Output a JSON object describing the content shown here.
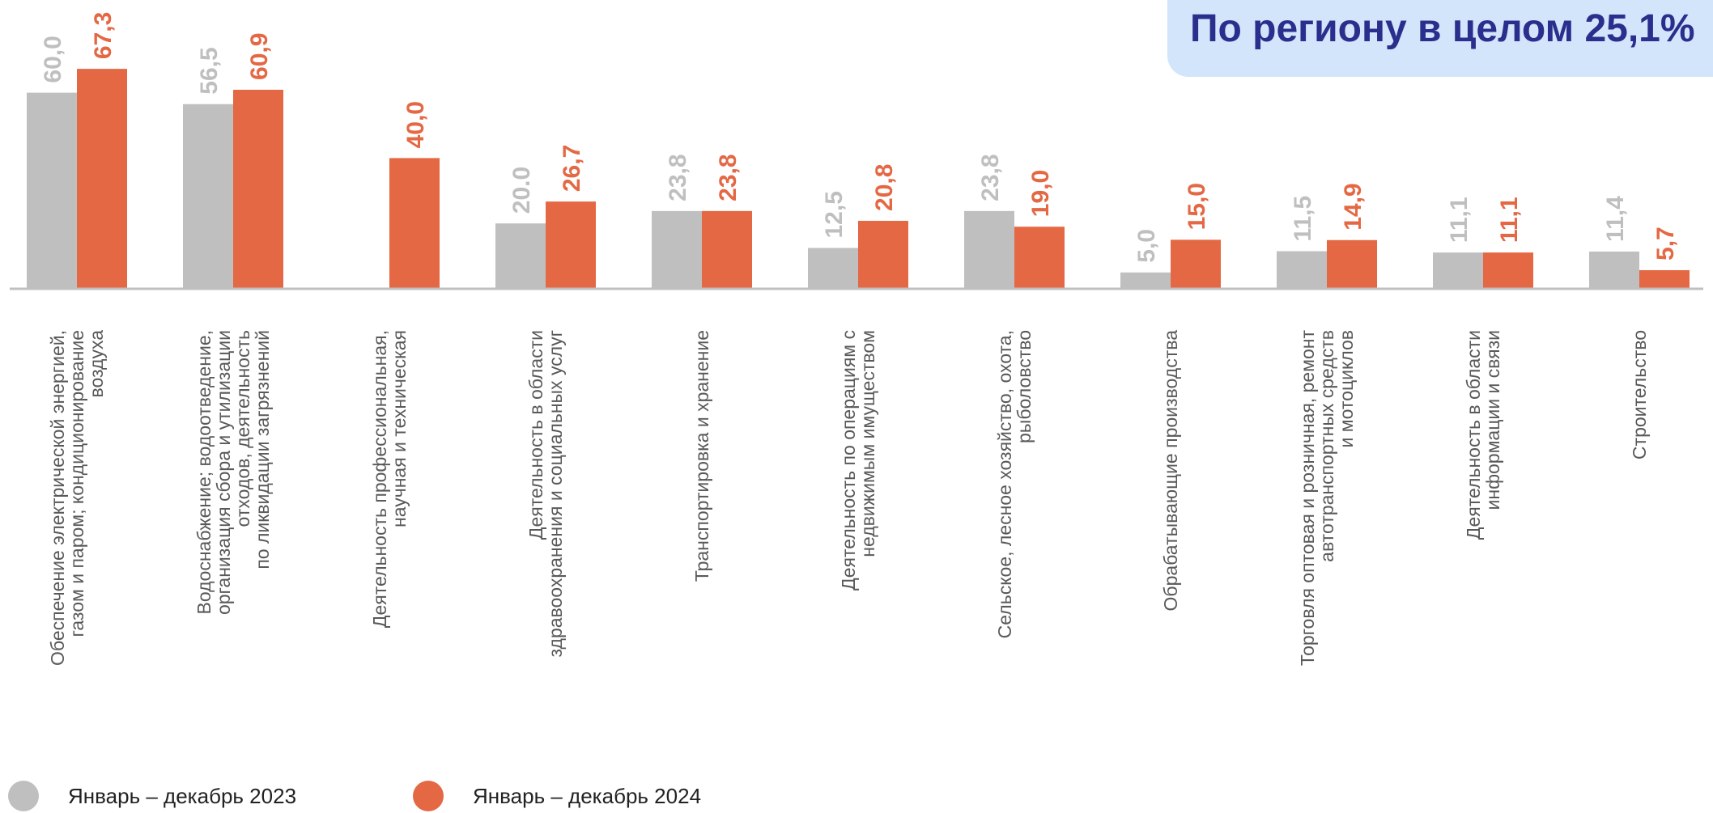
{
  "banner": {
    "text": "По региону в целом 25,1%"
  },
  "colors": {
    "series_2023": "#bfbfbf",
    "series_2024": "#e46844",
    "axis": "#bfbfbf",
    "category_label": "#595959",
    "banner_bg": "#d3e5fb",
    "banner_text": "#2a2e8c"
  },
  "chart_data": {
    "type": "bar",
    "title": "",
    "xlabel": "",
    "ylabel": "",
    "ylim": [
      0,
      70
    ],
    "grid": false,
    "legend_position": "bottom-left",
    "categories": [
      [
        "Обеспечение электрической энергией,",
        "газом и паром; кондиционирование",
        "воздуха"
      ],
      [
        "Водоснабжение; водоотведение,",
        "организация сбора и утилизации",
        "отходов, деятельность",
        "по ликвидации загрязнений"
      ],
      [
        "Деятельность профессиональная,",
        "научная и техническая"
      ],
      [
        "Деятельность в области",
        "здравоохранения и социальных услуг"
      ],
      [
        "Транспортировка и хранение"
      ],
      [
        "Деятельность  по операциям с",
        "недвижимым имуществом"
      ],
      [
        "Сельское, лесное хозяйство, охота,",
        "рыболовство"
      ],
      [
        "Обрабатывающие производства"
      ],
      [
        "Торговля оптовая и розничная, ремонт",
        "автотранспортных средств",
        "и мотоциклов"
      ],
      [
        "Деятельность в области",
        "информации и связи"
      ],
      [
        "Строительство"
      ]
    ],
    "series": [
      {
        "name": "Январь – декабрь 2023",
        "values": [
          60.0,
          56.5,
          null,
          20.0,
          23.8,
          12.5,
          23.8,
          5.0,
          11.5,
          11.1,
          11.4
        ],
        "labels": [
          "60,0",
          "56,5",
          "",
          "20.0",
          "23,8",
          "12,5",
          "23,8",
          "5,0",
          "11,5",
          "11,1",
          "11,4"
        ]
      },
      {
        "name": "Январь  – декабрь 2024",
        "values": [
          67.3,
          60.9,
          40.0,
          26.7,
          23.8,
          20.8,
          19.0,
          15.0,
          14.9,
          11.1,
          5.7
        ],
        "labels": [
          "67,3",
          "60,9",
          "40,0",
          "26,7",
          "23,8",
          "20,8",
          "19,0",
          "15,0",
          "14,9",
          "11,1",
          "5,7"
        ]
      }
    ]
  }
}
